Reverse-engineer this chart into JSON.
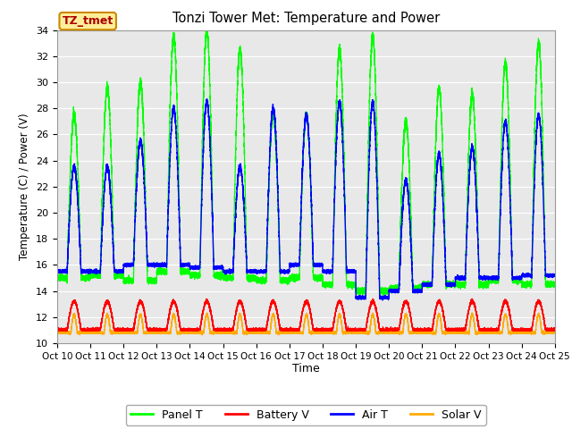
{
  "title": "Tonzi Tower Met: Temperature and Power",
  "xlabel": "Time",
  "ylabel": "Temperature (C) / Power (V)",
  "ylim": [
    10,
    34
  ],
  "xtick_labels": [
    "Oct 10",
    "Oct 11",
    "Oct 12",
    "Oct 13",
    "Oct 14",
    "Oct 15",
    "Oct 16",
    "Oct 17",
    "Oct 18",
    "Oct 19",
    "Oct 20",
    "Oct 21",
    "Oct 22",
    "Oct 23",
    "Oct 24",
    "Oct 25"
  ],
  "legend_labels": [
    "Panel T",
    "Battery V",
    "Air T",
    "Solar V"
  ],
  "panel_color": "#00ff00",
  "battery_color": "#ff0000",
  "air_color": "#0000ff",
  "solar_color": "#ffaa00",
  "bg_color": "#e8e8e8",
  "label_box_color": "#ffee99",
  "label_box_edge": "#cc8800",
  "label_text": "TZ_tmet",
  "label_text_color": "#aa0000",
  "grid_color": "#ffffff",
  "panel_peaks": [
    27.5,
    29.5,
    30.0,
    33.5,
    34.0,
    32.5,
    27.5,
    27.5,
    32.5,
    33.5,
    27.0,
    29.5,
    29.0,
    31.5,
    33.0
  ],
  "air_peaks": [
    23.5,
    23.5,
    25.5,
    28.0,
    28.5,
    23.5,
    28.0,
    27.5,
    28.5,
    28.5,
    22.5,
    24.5,
    25.0,
    27.0,
    27.5
  ],
  "night_panel": [
    15.0,
    15.2,
    14.8,
    15.5,
    15.2,
    15.0,
    14.8,
    15.0,
    14.5,
    14.0,
    14.2,
    14.5,
    14.5,
    14.8,
    14.5
  ],
  "night_air": [
    15.5,
    15.5,
    16.0,
    16.0,
    15.8,
    15.5,
    15.5,
    16.0,
    15.5,
    13.5,
    14.0,
    14.5,
    15.0,
    15.0,
    15.2
  ]
}
